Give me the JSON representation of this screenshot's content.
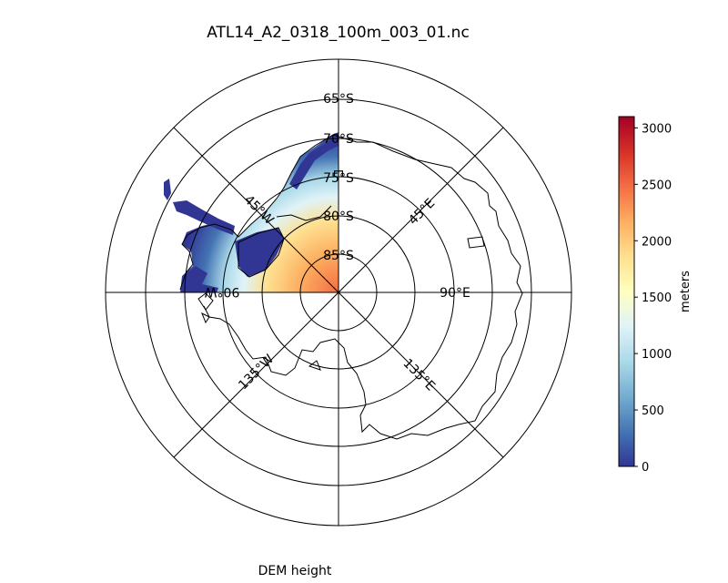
{
  "figure": {
    "title": "ATL14_A2_0318_100m_003_01.nc",
    "caption": "DEM height"
  },
  "map": {
    "projection": "south-polar-stereographic",
    "latitude_labels": [
      "65°S",
      "70°S",
      "75°S",
      "80°S",
      "85°S"
    ],
    "longitude_labels": [
      "45°E",
      "90°E",
      "135°E",
      "45°W",
      "90°W",
      "135°W"
    ],
    "coastline_color": "#000000",
    "graticule_color": "#000000"
  },
  "colorbar": {
    "label": "meters",
    "ticks": [
      "0",
      "500",
      "1000",
      "1500",
      "2000",
      "2500",
      "3000"
    ],
    "range": [
      0,
      3100
    ],
    "colormap": "RdYlBu_r",
    "colors": [
      "#313695",
      "#4575b4",
      "#74add1",
      "#abd9e9",
      "#e0f3f8",
      "#ffffbf",
      "#fee090",
      "#fdae61",
      "#f46d43",
      "#d73027",
      "#a50026"
    ]
  }
}
